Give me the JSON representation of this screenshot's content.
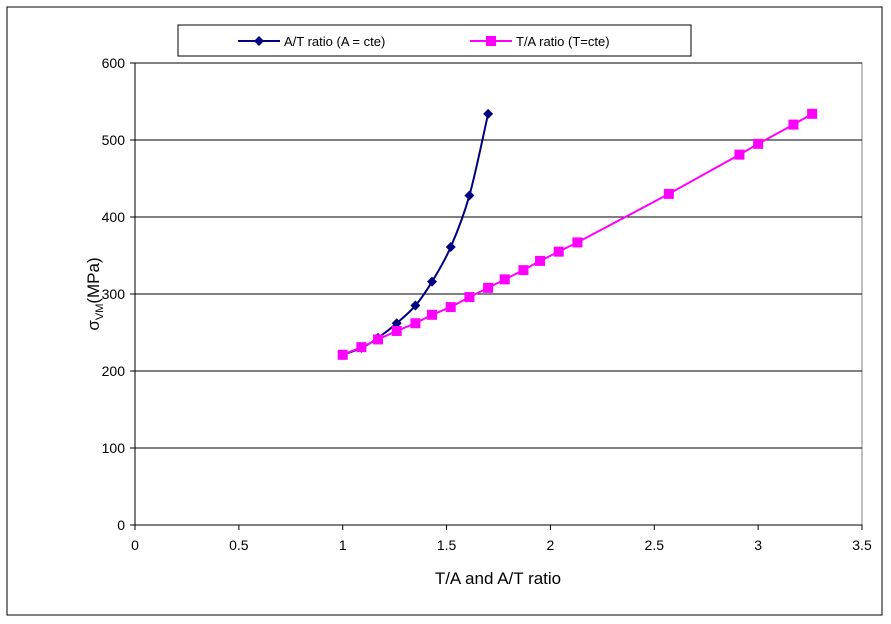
{
  "chart_data": {
    "type": "line",
    "title": "",
    "xlabel": "T/A and A/T ratio",
    "ylabel": {
      "base": "σ",
      "subscript": "VM",
      "suffix": "(MPa)"
    },
    "xlim": [
      0,
      3.5
    ],
    "ylim": [
      0,
      600
    ],
    "x_ticks": [
      0,
      0.5,
      1,
      1.5,
      2,
      2.5,
      3,
      3.5
    ],
    "x_tick_labels": [
      "0",
      "0.5",
      "1",
      "1.5",
      "2",
      "2.5",
      "3",
      "3.5"
    ],
    "y_ticks": [
      0,
      100,
      200,
      300,
      400,
      500,
      600
    ],
    "y_tick_labels": [
      "0",
      "100",
      "200",
      "300",
      "400",
      "500",
      "600"
    ],
    "grid": {
      "horizontal": true,
      "vertical": false
    },
    "legend_position": "top",
    "series": [
      {
        "name": "A/T ratio (A = cte)",
        "color": "#000080",
        "marker": "diamond",
        "smooth": true,
        "points": [
          [
            1.0,
            221
          ],
          [
            1.09,
            230
          ],
          [
            1.17,
            243
          ],
          [
            1.26,
            262
          ],
          [
            1.35,
            285
          ],
          [
            1.43,
            316
          ],
          [
            1.52,
            361
          ],
          [
            1.61,
            428
          ],
          [
            1.7,
            534
          ]
        ]
      },
      {
        "name": "T/A ratio (T=cte)",
        "color": "#ff00ff",
        "marker": "square",
        "smooth": false,
        "points": [
          [
            1.0,
            221
          ],
          [
            1.09,
            231
          ],
          [
            1.17,
            241
          ],
          [
            1.26,
            252
          ],
          [
            1.35,
            262
          ],
          [
            1.43,
            273
          ],
          [
            1.52,
            283
          ],
          [
            1.61,
            296
          ],
          [
            1.7,
            308
          ],
          [
            1.78,
            319
          ],
          [
            1.87,
            331
          ],
          [
            1.95,
            343
          ],
          [
            2.04,
            355
          ],
          [
            2.13,
            367
          ],
          [
            2.57,
            430
          ],
          [
            2.91,
            481
          ],
          [
            3.0,
            495
          ],
          [
            3.17,
            520
          ],
          [
            3.26,
            534
          ]
        ]
      }
    ]
  }
}
